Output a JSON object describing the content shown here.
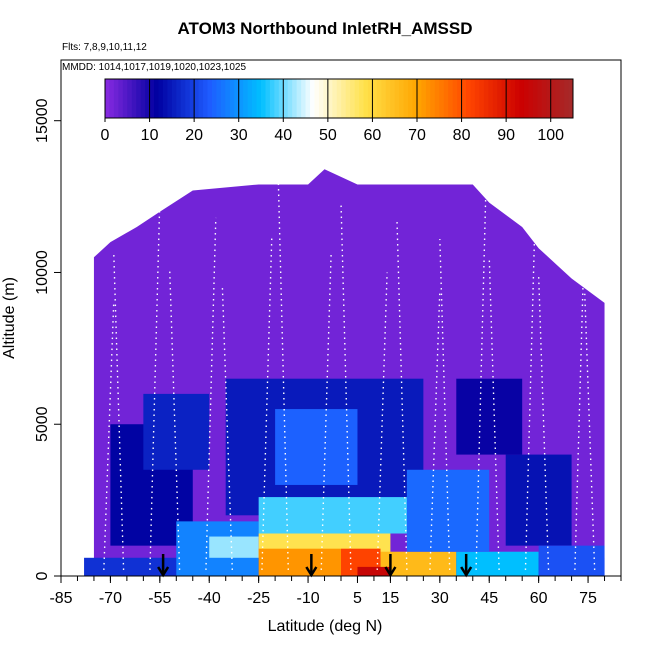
{
  "chart_data": {
    "type": "heatmap",
    "title": "ATOM3 Northbound InletRH_AMSSD",
    "flights_text": "Flts: 7,8,9,10,11,12",
    "dates_text": "MMDD: 1014,1017,1019,1020,1023,1025",
    "xlabel": "Latitude (deg N)",
    "ylabel": "Altitude (m)",
    "xlim": [
      -85,
      85
    ],
    "ylim": [
      0,
      17000
    ],
    "x_ticks": [
      "-85",
      "-70",
      "-55",
      "-40",
      "-25",
      "-10",
      "5",
      "15",
      "30",
      "45",
      "60",
      "75"
    ],
    "y_ticks": [
      "0",
      "5000",
      "10000",
      "15000"
    ],
    "colorbar": {
      "min": 0,
      "max": 105,
      "tick_labels": [
        "0",
        "10",
        "20",
        "30",
        "40",
        "50",
        "60",
        "70",
        "80",
        "90",
        "100"
      ],
      "colors": [
        "#8a2be2",
        "#0000a0",
        "#1e5bff",
        "#00bfff",
        "#ffffff",
        "#ffe14a",
        "#ffa500",
        "#ff4500",
        "#cc0000",
        "#a52a2a"
      ]
    },
    "ceiling_profile": [
      {
        "x": -75,
        "y": 10500
      },
      {
        "x": -70,
        "y": 11000
      },
      {
        "x": -62,
        "y": 11500
      },
      {
        "x": -55,
        "y": 12000
      },
      {
        "x": -45,
        "y": 12700
      },
      {
        "x": -25,
        "y": 12900
      },
      {
        "x": -10,
        "y": 12900
      },
      {
        "x": -5,
        "y": 13400
      },
      {
        "x": 5,
        "y": 12900
      },
      {
        "x": 40,
        "y": 12900
      },
      {
        "x": 45,
        "y": 12300
      },
      {
        "x": 55,
        "y": 11500
      },
      {
        "x": 60,
        "y": 10800
      },
      {
        "x": 65,
        "y": 10300
      },
      {
        "x": 70,
        "y": 9800
      },
      {
        "x": 80,
        "y": 9000
      }
    ],
    "rh_regions": [
      {
        "x0": -78,
        "x1": 80,
        "y0": 0,
        "y1": 600,
        "rh": 18
      },
      {
        "x0": -70,
        "x1": -45,
        "y0": 1000,
        "y1": 5000,
        "rh": 12
      },
      {
        "x0": -50,
        "x1": -25,
        "y0": 0,
        "y1": 1800,
        "rh": 28
      },
      {
        "x0": -35,
        "x1": 25,
        "y0": 2000,
        "y1": 6500,
        "rh": 15
      },
      {
        "x0": -20,
        "x1": 5,
        "y0": 3000,
        "y1": 5500,
        "rh": 24
      },
      {
        "x0": -25,
        "x1": 25,
        "y0": 1400,
        "y1": 2600,
        "rh": 38
      },
      {
        "x0": -40,
        "x1": -25,
        "y0": 600,
        "y1": 1300,
        "rh": 42
      },
      {
        "x0": -25,
        "x1": 15,
        "y0": 600,
        "y1": 1400,
        "rh": 58
      },
      {
        "x0": -25,
        "x1": 0,
        "y0": 0,
        "y1": 900,
        "rh": 72
      },
      {
        "x0": 0,
        "x1": 12,
        "y0": 0,
        "y1": 900,
        "rh": 82
      },
      {
        "x0": 12,
        "x1": 35,
        "y0": 0,
        "y1": 800,
        "rh": 66
      },
      {
        "x0": 5,
        "x1": 15,
        "y0": 0,
        "y1": 300,
        "rh": 95
      },
      {
        "x0": 35,
        "x1": 60,
        "y0": 0,
        "y1": 800,
        "rh": 35
      },
      {
        "x0": 20,
        "x1": 45,
        "y0": 800,
        "y1": 3500,
        "rh": 25
      },
      {
        "x0": 50,
        "x1": 70,
        "y0": 1000,
        "y1": 4000,
        "rh": 14
      },
      {
        "x0": 60,
        "x1": 80,
        "y0": 0,
        "y1": 1000,
        "rh": 22
      },
      {
        "x0": -60,
        "x1": -40,
        "y0": 3500,
        "y1": 6000,
        "rh": 16
      },
      {
        "x0": 35,
        "x1": 55,
        "y0": 4000,
        "y1": 6500,
        "rh": 11
      }
    ],
    "arrow_latitudes": [
      -54,
      -9,
      15,
      38
    ]
  }
}
